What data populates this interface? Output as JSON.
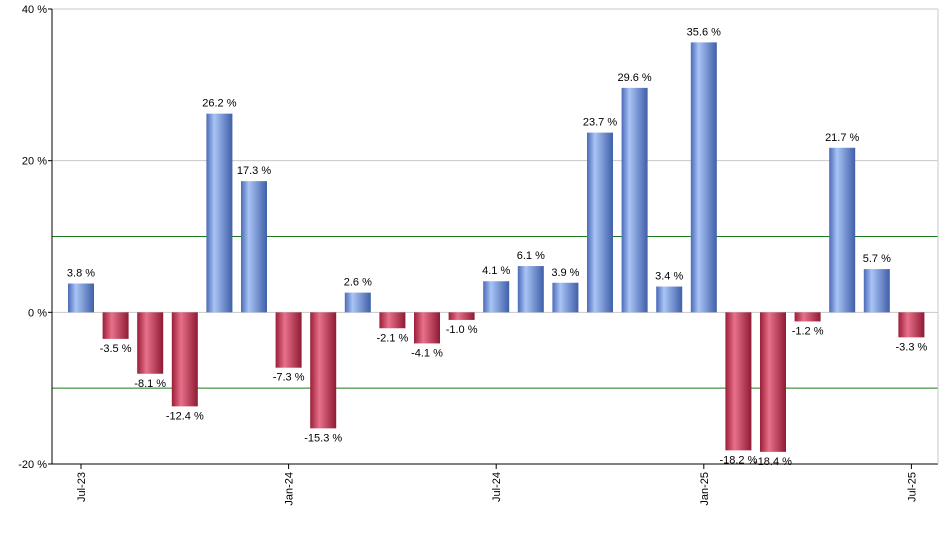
{
  "chart_data": {
    "type": "bar",
    "categories": [
      "2023-07",
      "2023-08",
      "2023-09",
      "2023-10",
      "2023-11",
      "2023-12",
      "2024-01",
      "2024-02",
      "2024-03",
      "2024-04",
      "2024-05",
      "2024-06",
      "2024-07",
      "2024-08",
      "2024-09",
      "2024-10",
      "2024-11",
      "2024-12",
      "2025-01",
      "2025-02",
      "2025-03",
      "2025-04",
      "2025-05",
      "2025-06",
      "2025-07"
    ],
    "values": [
      3.8,
      -3.5,
      -8.1,
      -12.4,
      26.2,
      17.3,
      -7.3,
      -15.3,
      2.6,
      -2.1,
      -4.1,
      -1.0,
      4.1,
      6.1,
      3.9,
      23.7,
      29.6,
      3.4,
      35.6,
      -18.2,
      -18.4,
      -1.2,
      21.7,
      5.7,
      -3.3
    ],
    "data_labels": [
      "3.8 %",
      "-3.5 %",
      "-8.1 %",
      "-12.4 %",
      "26.2 %",
      "17.3 %",
      "-7.3 %",
      "-15.3 %",
      "2.6 %",
      "-2.1 %",
      "-4.1 %",
      "-1.0 %",
      "4.1 %",
      "6.1 %",
      "3.9 %",
      "23.7 %",
      "29.6 %",
      "3.4 %",
      "35.6 %",
      "-18.2 %",
      "-18.4 %",
      "-1.2 %",
      "21.7 %",
      "5.7 %",
      "-3.3 %"
    ],
    "ylim": [
      -20,
      40
    ],
    "y_ticks": [
      {
        "value": 40,
        "label": "40 %"
      },
      {
        "value": 20,
        "label": "20 %"
      },
      {
        "value": 0,
        "label": "0 %"
      },
      {
        "value": -20,
        "label": "-20 %"
      }
    ],
    "x_ticks": [
      {
        "index": 0,
        "label": "Jul-23"
      },
      {
        "index": 6,
        "label": "Jan-24"
      },
      {
        "index": 12,
        "label": "Jul-24"
      },
      {
        "index": 18,
        "label": "Jan-25"
      },
      {
        "index": 24,
        "label": "Jul-25"
      }
    ],
    "reference_lines": [
      10,
      -10
    ],
    "grid": true,
    "colors": {
      "positive": "#6b8fd6",
      "negative": "#c8324e",
      "reference_line": "#1a7a1a",
      "grid": "#c8c8c8",
      "axis": "#000000"
    }
  }
}
